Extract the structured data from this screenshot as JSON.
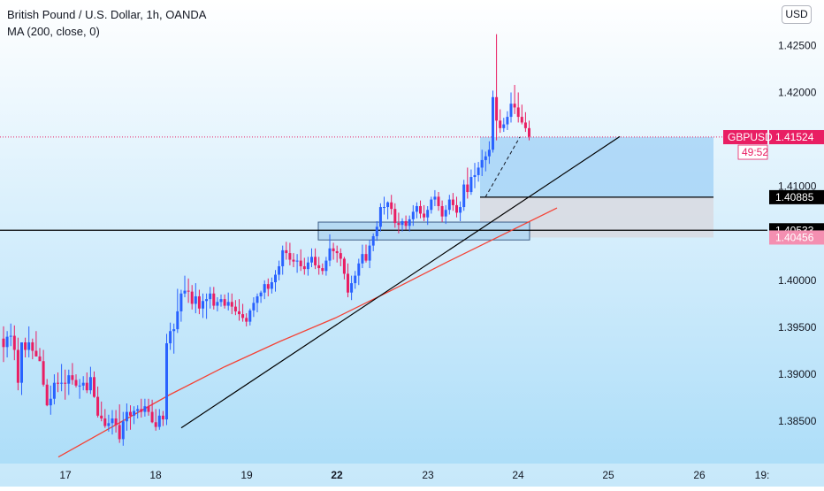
{
  "header": {
    "title": "British Pound / U.S. Dollar, 1h, OANDA",
    "indicator": "MA (200, close, 0)",
    "currency_button": "USD"
  },
  "colors": {
    "background_top": "#ffffff",
    "background_bottom": "#a9dcf8",
    "up_candle": "#2962ff",
    "down_candle": "#e91e63",
    "ma_line": "#f44336",
    "price_line": "#e91e63",
    "long_profit_zone": "#9fd0f5",
    "long_stop_zone": "#d8d9e0",
    "box": "#b3d7f2"
  },
  "chart_data": {
    "type": "candlestick",
    "symbol": "GBPUSD",
    "timeframe": "1h",
    "x_ticks": [
      "17",
      "18",
      "19",
      "22",
      "23",
      "24",
      "25",
      "26",
      "19:"
    ],
    "x_ticks_bold": [
      "22"
    ],
    "y_ticks": [
      "1.42500",
      "1.42000",
      "1.41000",
      "1.40000",
      "1.39500",
      "1.39000",
      "1.38500"
    ],
    "ylim": [
      1.3805,
      1.4272
    ],
    "price_labels": [
      {
        "value": 1.41525,
        "text": "1.41525",
        "style": "current"
      },
      {
        "value": 1.41524,
        "text": "1.41524",
        "style": "pink"
      },
      {
        "value": 1.40885,
        "text": "1.40885",
        "style": "black"
      },
      {
        "value": 1.40533,
        "text": "1.40533",
        "style": "black"
      },
      {
        "value": 1.40456,
        "text": "1.40456",
        "style": "lightpink"
      }
    ],
    "symbol_tag": "GBPUSD",
    "countdown": "49:52",
    "horizontal_lines": [
      1.40885,
      1.40533
    ],
    "current_price": 1.41525,
    "trendline": {
      "from": [
        "Jun 18",
        1.3843
      ],
      "to": [
        "Jun 25",
        1.4153
      ]
    },
    "ma_200": [
      [
        1.3812,
        1.3845,
        1.3878,
        1.3908,
        1.3935,
        1.396,
        1.3989,
        1.4019,
        1.4048,
        1.4077
      ]
    ],
    "long_position": {
      "entry": 1.40885,
      "target": 1.41525,
      "stop": 1.40456
    },
    "zone_box": {
      "top": 1.4062,
      "bottom": 1.4043
    },
    "candles": [
      [
        1.3938,
        1.3951,
        1.3913,
        1.3929
      ],
      [
        1.3929,
        1.3946,
        1.3918,
        1.394
      ],
      [
        1.394,
        1.3954,
        1.393,
        1.3941
      ],
      [
        1.3941,
        1.3952,
        1.3915,
        1.3926
      ],
      [
        1.3926,
        1.3939,
        1.3883,
        1.3891
      ],
      [
        1.3891,
        1.3933,
        1.3878,
        1.3934
      ],
      [
        1.3934,
        1.3939,
        1.3918,
        1.3926
      ],
      [
        1.3926,
        1.3951,
        1.3918,
        1.3934
      ],
      [
        1.3934,
        1.3938,
        1.3916,
        1.3925
      ],
      [
        1.3925,
        1.3946,
        1.3919,
        1.3919
      ],
      [
        1.3919,
        1.3928,
        1.3914,
        1.3914
      ],
      [
        1.3914,
        1.3926,
        1.3887,
        1.3889
      ],
      [
        1.3889,
        1.3895,
        1.3866,
        1.3867
      ],
      [
        1.3867,
        1.3888,
        1.3857,
        1.3874
      ],
      [
        1.3874,
        1.39,
        1.3868,
        1.3891
      ],
      [
        1.3891,
        1.3902,
        1.3881,
        1.389
      ],
      [
        1.389,
        1.3911,
        1.3882,
        1.3891
      ],
      [
        1.3891,
        1.3905,
        1.3873,
        1.389
      ],
      [
        1.389,
        1.3905,
        1.3878,
        1.3899
      ],
      [
        1.3899,
        1.3912,
        1.3889,
        1.3894
      ],
      [
        1.3894,
        1.39,
        1.3886,
        1.3888
      ],
      [
        1.3888,
        1.3895,
        1.3874,
        1.3888
      ],
      [
        1.3888,
        1.3898,
        1.3883,
        1.3891
      ],
      [
        1.3891,
        1.3902,
        1.388,
        1.3883
      ],
      [
        1.3883,
        1.3908,
        1.3879,
        1.3897
      ],
      [
        1.3897,
        1.3903,
        1.3875,
        1.3876
      ],
      [
        1.3876,
        1.3887,
        1.3854,
        1.3856
      ],
      [
        1.3856,
        1.3871,
        1.385,
        1.3853
      ],
      [
        1.3853,
        1.3863,
        1.3843,
        1.3845
      ],
      [
        1.3845,
        1.3857,
        1.3839,
        1.3848
      ],
      [
        1.3848,
        1.3862,
        1.3836,
        1.3853
      ],
      [
        1.3853,
        1.3862,
        1.3838,
        1.3846
      ],
      [
        1.3846,
        1.3868,
        1.3827,
        1.3831
      ],
      [
        1.3831,
        1.386,
        1.3824,
        1.385
      ],
      [
        1.385,
        1.3869,
        1.384,
        1.386
      ],
      [
        1.386,
        1.3867,
        1.3841,
        1.3856
      ],
      [
        1.3856,
        1.3866,
        1.3847,
        1.3861
      ],
      [
        1.3861,
        1.3867,
        1.3853,
        1.3863
      ],
      [
        1.3863,
        1.3874,
        1.3854,
        1.386
      ],
      [
        1.386,
        1.3874,
        1.3855,
        1.3866
      ],
      [
        1.3866,
        1.3874,
        1.3856,
        1.386
      ],
      [
        1.386,
        1.3873,
        1.3848,
        1.3849
      ],
      [
        1.3849,
        1.3863,
        1.384,
        1.3844
      ],
      [
        1.3844,
        1.3863,
        1.3841,
        1.3856
      ],
      [
        1.3856,
        1.3861,
        1.3845,
        1.3852
      ],
      [
        1.3852,
        1.3943,
        1.3846,
        1.3933
      ],
      [
        1.3933,
        1.3955,
        1.3926,
        1.3946
      ],
      [
        1.3946,
        1.3954,
        1.3922,
        1.3948
      ],
      [
        1.3948,
        1.3991,
        1.3944,
        1.3967
      ],
      [
        1.3967,
        1.399,
        1.3956,
        1.3986
      ],
      [
        1.3986,
        1.4005,
        1.3982,
        1.3989
      ],
      [
        1.3989,
        1.4002,
        1.3976,
        1.3988
      ],
      [
        1.3988,
        1.3995,
        1.3969,
        1.3975
      ],
      [
        1.3975,
        1.3997,
        1.3965,
        1.3983
      ],
      [
        1.3983,
        1.399,
        1.3964,
        1.397
      ],
      [
        1.397,
        1.3986,
        1.396,
        1.3978
      ],
      [
        1.3978,
        1.3986,
        1.3959,
        1.398
      ],
      [
        1.398,
        1.3993,
        1.397,
        1.3986
      ],
      [
        1.3986,
        1.3993,
        1.3969,
        1.3973
      ],
      [
        1.3973,
        1.3982,
        1.3967,
        1.3977
      ],
      [
        1.3977,
        1.3985,
        1.3972,
        1.398
      ],
      [
        1.398,
        1.3985,
        1.397,
        1.3973
      ],
      [
        1.3973,
        1.3987,
        1.3968,
        1.3977
      ],
      [
        1.3977,
        1.3986,
        1.3964,
        1.3972
      ],
      [
        1.3972,
        1.3979,
        1.3963,
        1.3967
      ],
      [
        1.3967,
        1.398,
        1.3957,
        1.3964
      ],
      [
        1.3964,
        1.3975,
        1.3956,
        1.396
      ],
      [
        1.396,
        1.3965,
        1.3951,
        1.3956
      ],
      [
        1.3956,
        1.397,
        1.3952,
        1.3968
      ],
      [
        1.3968,
        1.3982,
        1.3961,
        1.3976
      ],
      [
        1.3976,
        1.3986,
        1.3966,
        1.3983
      ],
      [
        1.3983,
        1.3989,
        1.3976,
        1.3987
      ],
      [
        1.3987,
        1.4,
        1.398,
        1.3996
      ],
      [
        1.3996,
        1.4002,
        1.3983,
        1.3991
      ],
      [
        1.3991,
        1.4003,
        1.3986,
        1.3998
      ],
      [
        1.3998,
        1.4011,
        1.3988,
        1.4006
      ],
      [
        1.4006,
        1.4021,
        1.4,
        1.4015
      ],
      [
        1.4015,
        1.4037,
        1.4006,
        1.4032
      ],
      [
        1.4032,
        1.4041,
        1.4022,
        1.4029
      ],
      [
        1.4029,
        1.404,
        1.4016,
        1.4022
      ],
      [
        1.4022,
        1.4029,
        1.4014,
        1.402
      ],
      [
        1.402,
        1.4028,
        1.4008,
        1.4021
      ],
      [
        1.4021,
        1.4033,
        1.401,
        1.4015
      ],
      [
        1.4015,
        1.4024,
        1.4006,
        1.4012
      ],
      [
        1.4012,
        1.4025,
        1.4005,
        1.4019
      ],
      [
        1.4019,
        1.4034,
        1.4014,
        1.4025
      ],
      [
        1.4025,
        1.4034,
        1.4012,
        1.4016
      ],
      [
        1.4016,
        1.4025,
        1.4006,
        1.4013
      ],
      [
        1.4013,
        1.4018,
        1.4006,
        1.401
      ],
      [
        1.401,
        1.4025,
        1.4005,
        1.4021
      ],
      [
        1.4021,
        1.4049,
        1.4015,
        1.4034
      ],
      [
        1.4034,
        1.404,
        1.4022,
        1.4031
      ],
      [
        1.4031,
        1.4037,
        1.4019,
        1.4029
      ],
      [
        1.4029,
        1.4034,
        1.4015,
        1.4023
      ],
      [
        1.4023,
        1.4025,
        1.4001,
        1.4007
      ],
      [
        1.4007,
        1.4018,
        1.3982,
        1.3987
      ],
      [
        1.3987,
        1.4005,
        1.3979,
        1.3997
      ],
      [
        1.3997,
        1.401,
        1.3991,
        1.4005
      ],
      [
        1.4005,
        1.4023,
        1.3995,
        1.4018
      ],
      [
        1.4018,
        1.4038,
        1.4013,
        1.4028
      ],
      [
        1.4028,
        1.4038,
        1.4019,
        1.4021
      ],
      [
        1.4021,
        1.4043,
        1.4013,
        1.4037
      ],
      [
        1.4037,
        1.405,
        1.4031,
        1.4047
      ],
      [
        1.4047,
        1.4063,
        1.4042,
        1.4057
      ],
      [
        1.4057,
        1.4082,
        1.4052,
        1.4078
      ],
      [
        1.4078,
        1.4089,
        1.407,
        1.4078
      ],
      [
        1.4078,
        1.4084,
        1.4065,
        1.4083
      ],
      [
        1.4083,
        1.4091,
        1.407,
        1.4076
      ],
      [
        1.4076,
        1.4082,
        1.4056,
        1.4061
      ],
      [
        1.4061,
        1.4072,
        1.405,
        1.4059
      ],
      [
        1.4059,
        1.4066,
        1.4052,
        1.4063
      ],
      [
        1.4063,
        1.4069,
        1.4054,
        1.4058
      ],
      [
        1.4058,
        1.4069,
        1.4052,
        1.4065
      ],
      [
        1.4065,
        1.408,
        1.4058,
        1.4073
      ],
      [
        1.4073,
        1.4083,
        1.4066,
        1.4079
      ],
      [
        1.4079,
        1.4085,
        1.4066,
        1.4071
      ],
      [
        1.4071,
        1.408,
        1.4063,
        1.4067
      ],
      [
        1.4067,
        1.4079,
        1.4059,
        1.4075
      ],
      [
        1.4075,
        1.4089,
        1.4071,
        1.4086
      ],
      [
        1.4086,
        1.4096,
        1.4079,
        1.4089
      ],
      [
        1.4089,
        1.4094,
        1.4074,
        1.4079
      ],
      [
        1.4079,
        1.4085,
        1.4062,
        1.4068
      ],
      [
        1.4068,
        1.408,
        1.406,
        1.4075
      ],
      [
        1.4075,
        1.4091,
        1.407,
        1.4086
      ],
      [
        1.4086,
        1.4093,
        1.4074,
        1.408
      ],
      [
        1.408,
        1.4089,
        1.4067,
        1.4072
      ],
      [
        1.4072,
        1.4084,
        1.4063,
        1.4078
      ],
      [
        1.4078,
        1.4107,
        1.4074,
        1.4102
      ],
      [
        1.4102,
        1.412,
        1.4087,
        1.4094
      ],
      [
        1.4094,
        1.4118,
        1.4091,
        1.411
      ],
      [
        1.411,
        1.4125,
        1.4098,
        1.4112
      ],
      [
        1.4112,
        1.4126,
        1.4105,
        1.412
      ],
      [
        1.412,
        1.4139,
        1.4111,
        1.4128
      ],
      [
        1.4128,
        1.4137,
        1.4116,
        1.4132
      ],
      [
        1.4132,
        1.4148,
        1.4124,
        1.4139
      ],
      [
        1.4139,
        1.4202,
        1.4136,
        1.4195
      ],
      [
        1.4195,
        1.4262,
        1.4149,
        1.417
      ],
      [
        1.417,
        1.4182,
        1.4157,
        1.4162
      ],
      [
        1.4162,
        1.4173,
        1.4158,
        1.4166
      ],
      [
        1.4166,
        1.418,
        1.416,
        1.4174
      ],
      [
        1.4174,
        1.42,
        1.4168,
        1.4188
      ],
      [
        1.4188,
        1.4208,
        1.4177,
        1.4184
      ],
      [
        1.4184,
        1.42,
        1.4168,
        1.4174
      ],
      [
        1.4174,
        1.4187,
        1.4166,
        1.4168
      ],
      [
        1.4168,
        1.4179,
        1.4158,
        1.4162
      ],
      [
        1.4162,
        1.417,
        1.4149,
        1.4153
      ]
    ]
  }
}
